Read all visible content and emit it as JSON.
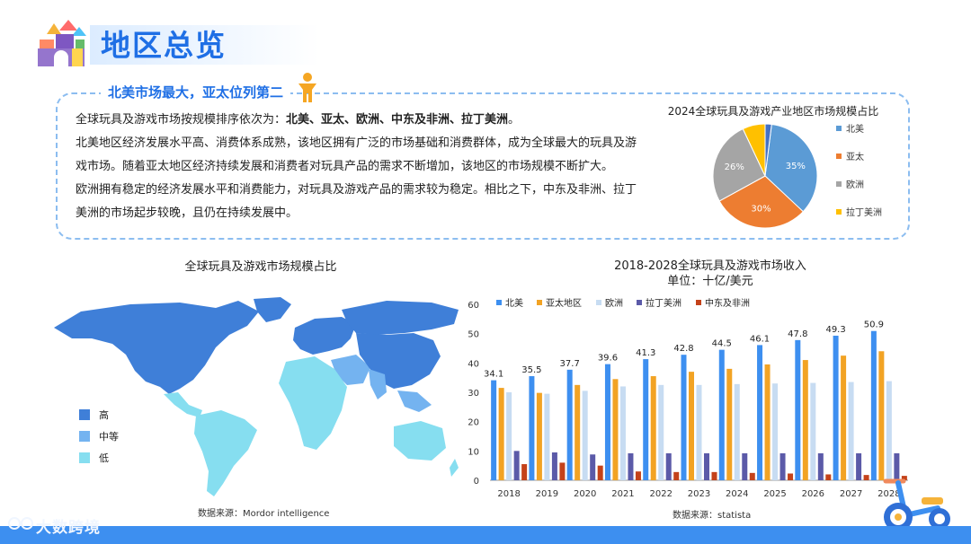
{
  "header": {
    "title": "地区总览"
  },
  "summary": {
    "heading": "北美市场最大，亚太位列第二",
    "line1_prefix": "全球玩具及游戏市场按规模排序依次为：",
    "line1_bold": "北美、亚太、欧洲、中东及非洲、拉丁美洲",
    "line1_suffix": "。",
    "line2": "北美地区经济发展水平高、消费体系成熟，该地区拥有广泛的市场基础和消费群体，成为全球最大的玩具及游",
    "line3": "戏市场。随着亚太地区经济持续发展和消费者对玩具产品的需求不断增加，该地区的市场规模不断扩大。",
    "line4": "欧洲拥有稳定的经济发展水平和消费能力，对玩具及游戏产品的需求较为稳定。相比之下，中东及非洲、拉丁",
    "line5": "美洲的市场起步较晚，且仍在持续发展中。"
  },
  "map": {
    "title": "全球玩具及游戏市场规模占比",
    "legend": [
      {
        "label": "高",
        "color": "#3f7fd8"
      },
      {
        "label": "中等",
        "color": "#74b3f0"
      },
      {
        "label": "低",
        "color": "#86def0"
      }
    ],
    "source": "数据来源：Mordor intelligence"
  },
  "colors": {
    "north_america": "#3d8ff0",
    "asia_pacific": "#f2a324",
    "europe": "#c7dcf2",
    "latin_america": "#5b5aa8",
    "mea": "#c4421a",
    "pie_na": "#5b9bd5",
    "pie_ap": "#ed7d31",
    "pie_eu": "#a5a5a5",
    "pie_la": "#ffc000",
    "pie_other": "#4472c4"
  },
  "bar_source": "数据来源：statista",
  "brand": "大数跨境",
  "chart_data": [
    {
      "type": "pie",
      "title": "2024全球玩具及游戏产业地区市场规模占比",
      "slices": [
        {
          "label": "北美",
          "value": 35,
          "show_label": true
        },
        {
          "label": "亚太",
          "value": 30,
          "show_label": true
        },
        {
          "label": "欧洲",
          "value": 26,
          "show_label": true
        },
        {
          "label": "拉丁美洲",
          "value": 7,
          "show_label": false
        },
        {
          "label": "",
          "value": 2,
          "show_label": false
        }
      ],
      "legend": [
        "北美",
        "亚太",
        "欧洲",
        "拉丁美洲"
      ],
      "legend_position": "right"
    },
    {
      "type": "bar",
      "title": "2018-2028全球玩具及游戏市场收入",
      "subtitle": "单位：十亿/美元",
      "categories": [
        "2018",
        "2019",
        "2020",
        "2021",
        "2022",
        "2023",
        "2024",
        "2025",
        "2026",
        "2027",
        "2028"
      ],
      "ylim": [
        0,
        60
      ],
      "yticks": [
        0,
        10,
        20,
        30,
        40,
        50,
        60
      ],
      "legend_position": "top",
      "series": [
        {
          "name": "北美",
          "values": [
            34.1,
            35.5,
            37.7,
            39.6,
            41.3,
            42.8,
            44.5,
            46.1,
            47.8,
            49.3,
            50.9
          ],
          "labels": [
            "34.1",
            "35.5",
            "37.7",
            "39.6",
            "41.3",
            "42.8",
            "44.5",
            "46.1",
            "47.8",
            "49.3",
            "50.9"
          ]
        },
        {
          "name": "亚太地区",
          "values": [
            31.5,
            29.8,
            32.5,
            34.5,
            35.5,
            37,
            38,
            39.5,
            41,
            42.5,
            44
          ]
        },
        {
          "name": "欧洲",
          "values": [
            30,
            29.5,
            30.5,
            32,
            32.5,
            32.5,
            32.8,
            33,
            33.2,
            33.5,
            33.8
          ]
        },
        {
          "name": "拉丁美洲",
          "values": [
            10,
            9.5,
            8.8,
            9.2,
            9.2,
            9.2,
            9.2,
            9.2,
            9.2,
            9.2,
            9.2
          ]
        },
        {
          "name": "中东及非洲",
          "values": [
            5.5,
            6,
            5,
            3,
            2.8,
            2.8,
            2.5,
            2.3,
            2,
            1.8,
            1.5
          ]
        }
      ]
    }
  ]
}
